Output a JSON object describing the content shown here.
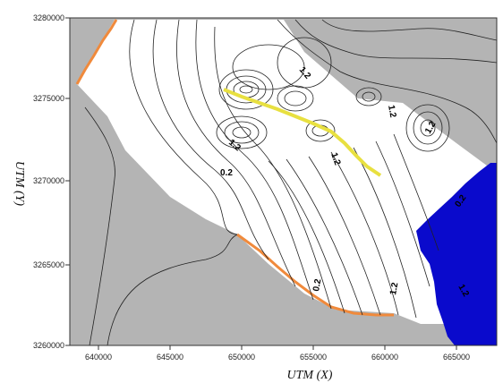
{
  "map": {
    "x_axis_title": "UTM (X)",
    "y_axis_title": "UTM (Y)",
    "x_ticks": [
      "640000",
      "645000",
      "650000",
      "655000",
      "660000",
      "665000"
    ],
    "y_ticks": [
      "3260000",
      "3265000",
      "3270000",
      "3275000",
      "3280000"
    ],
    "contour_labels": [
      "1.2",
      "1.2",
      "1.2",
      "0.2",
      "0.2",
      "1.2",
      "1.2",
      "0.2",
      "1.2",
      "1.2"
    ],
    "colors": {
      "gray_region": "#b4b4b4",
      "white_region": "#ffffff",
      "blue_region": "#0a0acc",
      "coastline": "#f08a3c",
      "feature_line": "#e8e040",
      "contour": "#222222"
    }
  }
}
